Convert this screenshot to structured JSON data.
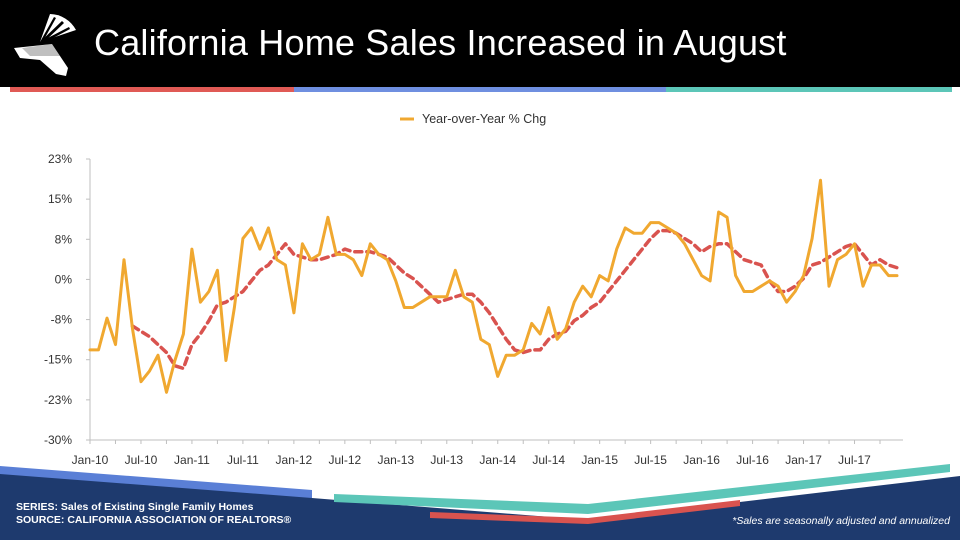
{
  "header": {
    "title": "California Home Sales Increased in August",
    "stripe_colors": [
      "#e05a55",
      "#6f8fe0",
      "#5cc6b8"
    ]
  },
  "footer": {
    "series_label": "SERIES: Sales of Existing Single Family Homes",
    "source_label": "SOURCE:  CALIFORNIA ASSOCIATION OF REALTORS®",
    "note": "*Sales are seasonally adjusted and annualized"
  },
  "chart_data": {
    "type": "line",
    "legend": [
      "Year-over-Year % Chg"
    ],
    "legend_position": "top-center",
    "y_ticks": [
      "23%",
      "15%",
      "8%",
      "0%",
      "-8%",
      "-15%",
      "-23%",
      "-30%"
    ],
    "ylim": [
      -30,
      23
    ],
    "x_ticks": [
      "Jan-10",
      "Jul-10",
      "Jan-11",
      "Jul-11",
      "Jan-12",
      "Jul-12",
      "Jan-13",
      "Jul-13",
      "Jan-14",
      "Jul-14",
      "Jan-15",
      "Jul-15",
      "Jan-16",
      "Jul-16",
      "Jan-17",
      "Jul-17"
    ],
    "x_start": "Jan-10",
    "x_end": "Aug-17",
    "series": [
      {
        "name": "Year-over-Year % Chg",
        "color": "#f0a830",
        "style": "solid",
        "values": [
          -13,
          -13,
          -7,
          -12,
          4,
          -9,
          -19,
          -17,
          -14,
          -21,
          -15,
          -10,
          6,
          -4,
          -2,
          2,
          -15,
          -5,
          8,
          10,
          6,
          10,
          4,
          3,
          -6,
          7,
          4,
          5,
          12,
          5,
          5,
          4,
          1,
          7,
          5,
          4,
          0,
          -5,
          -5,
          -4,
          -3,
          -3,
          -3,
          2,
          -3,
          -4,
          -11,
          -12,
          -18,
          -14,
          -14,
          -13,
          -8,
          -10,
          -5,
          -11,
          -9,
          -4,
          -1,
          -3,
          1,
          0,
          6,
          10,
          9,
          9,
          11,
          11,
          10,
          9,
          7,
          4,
          1,
          0,
          13,
          12,
          1,
          -2,
          -2,
          -1,
          0,
          -1,
          -4,
          -2,
          1,
          8,
          19,
          -1,
          4,
          5,
          7,
          -1,
          3,
          3,
          1,
          1
        ]
      },
      {
        "name": "",
        "color": "#d9534f",
        "style": "dashed",
        "values": [
          null,
          null,
          null,
          null,
          null,
          -8.5,
          -9.5,
          -10.5,
          -12,
          -13.5,
          -16,
          -16.5,
          -12,
          -10,
          -7.5,
          -4.5,
          -4,
          -3,
          -2,
          0,
          2,
          3,
          5,
          7,
          5,
          4.5,
          4,
          4,
          4.5,
          5,
          6,
          5.5,
          5.5,
          5.5,
          5,
          4.5,
          3,
          1.5,
          0.5,
          -1,
          -2.5,
          -4,
          -3.5,
          -3,
          -2.5,
          -2.5,
          -4,
          -6,
          -8.5,
          -11,
          -13,
          -13.5,
          -13,
          -13,
          -11,
          -10,
          -9.5,
          -7.5,
          -6.5,
          -5,
          -4,
          -2,
          0,
          2,
          4,
          6,
          8,
          9.5,
          9.5,
          9,
          8,
          7,
          5.5,
          6.5,
          7,
          7,
          5.5,
          4,
          3.5,
          3,
          0,
          -2,
          -2,
          -1,
          0.5,
          3,
          3.5,
          4.5,
          5.5,
          6.5,
          7,
          5,
          3,
          4,
          3,
          2.5
        ]
      }
    ]
  }
}
